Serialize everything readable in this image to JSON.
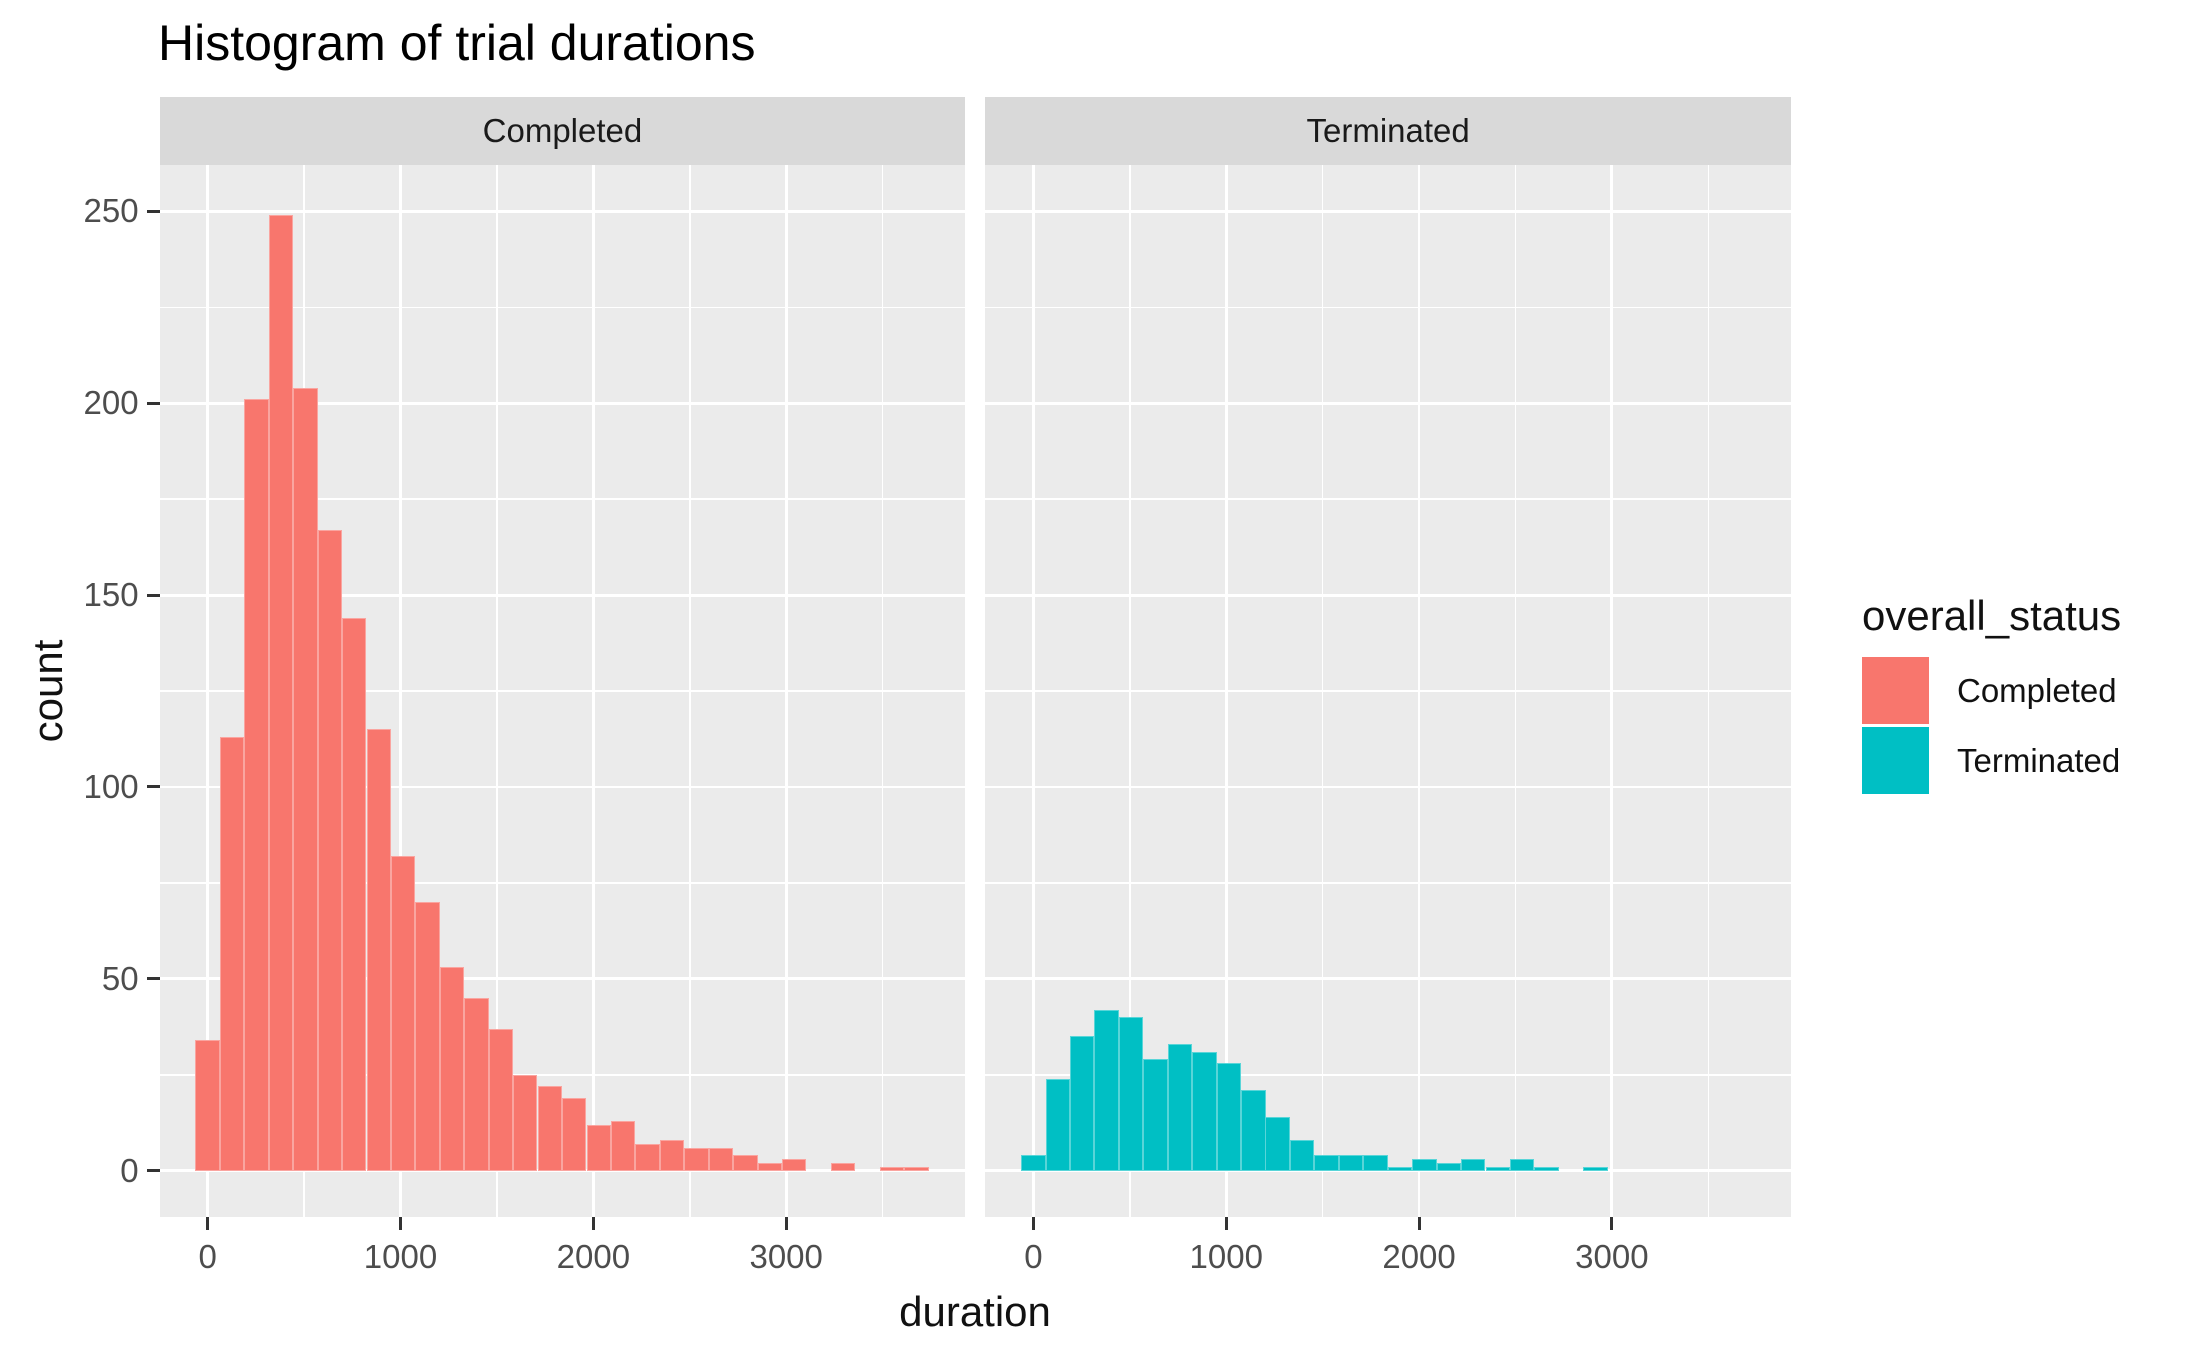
{
  "title": "Histogram of trial durations",
  "axes": {
    "x_label": "duration",
    "y_label": "count",
    "x_ticks": [
      0,
      1000,
      2000,
      3000
    ],
    "x_minor_ticks": [
      500,
      1500,
      2500,
      3500
    ],
    "y_ticks": [
      0,
      50,
      100,
      150,
      200,
      250
    ],
    "y_minor_ticks": [
      25,
      75,
      125,
      175,
      225
    ],
    "x_range": [
      -249.4,
      3928.9
    ],
    "y_range": [
      -11.94,
      262.1
    ],
    "grid": "on"
  },
  "colors": {
    "completed": "#F8766D",
    "terminated": "#00BFC4",
    "panel_bg": "#EBEBEB",
    "strip_bg": "#D9D9D9",
    "grid": "#FFFFFF",
    "axis_text": "#4D4D4D",
    "tick_mark": "#333333"
  },
  "legend": {
    "title": "overall_status",
    "position": "right",
    "items": [
      {
        "label": "Completed",
        "color_key": "completed"
      },
      {
        "label": "Terminated",
        "color_key": "terminated"
      }
    ]
  },
  "chart_data": {
    "type": "bar",
    "subtype": "faceted-histogram",
    "title": "Histogram of trial durations",
    "xlabel": "duration",
    "ylabel": "count",
    "bin_width": 126.7,
    "facets": [
      {
        "label": "Completed",
        "series": "Completed",
        "color_key": "completed",
        "bin_centers": [
          0,
          127,
          253,
          380,
          507,
          634,
          760,
          887,
          1014,
          1141,
          1267,
          1394,
          1521,
          1647,
          1774,
          1901,
          2028,
          2154,
          2281,
          2408,
          2535,
          2661,
          2788,
          2915,
          3041,
          3168,
          3295,
          3421,
          3548,
          3675
        ],
        "counts": [
          34,
          113,
          201,
          249,
          204,
          167,
          144,
          115,
          82,
          70,
          53,
          45,
          37,
          25,
          22,
          19,
          12,
          13,
          7,
          8,
          6,
          6,
          4,
          2,
          3,
          0,
          2,
          0,
          1,
          1
        ]
      },
      {
        "label": "Terminated",
        "series": "Terminated",
        "color_key": "terminated",
        "bin_centers": [
          0,
          127,
          253,
          380,
          507,
          634,
          760,
          887,
          1014,
          1141,
          1267,
          1394,
          1521,
          1647,
          1774,
          1901,
          2028,
          2154,
          2281,
          2408,
          2535,
          2661,
          2788,
          2915
        ],
        "counts": [
          4,
          24,
          35,
          42,
          40,
          29,
          33,
          31,
          28,
          21,
          14,
          8,
          4,
          4,
          4,
          1,
          3,
          2,
          3,
          1,
          3,
          1,
          0,
          1
        ]
      }
    ]
  }
}
